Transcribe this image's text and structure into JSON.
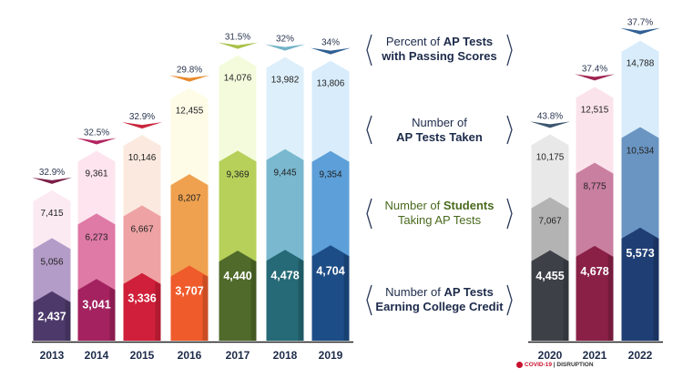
{
  "chart_data": {
    "type": "bar",
    "categories": [
      "2013",
      "2014",
      "2015",
      "2016",
      "2017",
      "2018",
      "2019",
      "2020",
      "2021",
      "2022"
    ],
    "series": [
      {
        "name": "Number of AP Tests Earning College Credit",
        "values": [
          2437,
          3041,
          3336,
          3707,
          4440,
          4478,
          4704,
          4455,
          4678,
          5573
        ]
      },
      {
        "name": "Number of Students Taking AP Tests",
        "values": [
          5056,
          6273,
          6667,
          8207,
          9369,
          9445,
          9354,
          7067,
          8775,
          10534
        ]
      },
      {
        "name": "Number of AP Tests Taken",
        "values": [
          7415,
          9361,
          10146,
          12455,
          14076,
          13982,
          13806,
          10175,
          12515,
          14788
        ]
      },
      {
        "name": "Percent of AP Tests with Passing Scores",
        "values": [
          "32.9%",
          "32.5%",
          "32.9%",
          "29.8%",
          "31.5%",
          "32%",
          "34%",
          "43.8%",
          "37.4%",
          "37.7%"
        ]
      }
    ],
    "value_labels": {
      "credit": [
        "2,437",
        "3,041",
        "3,336",
        "3,707",
        "4,440",
        "4,478",
        "4,704",
        "4,455",
        "4,678",
        "5,573"
      ],
      "students": [
        "5,056",
        "6,273",
        "6,667",
        "8,207",
        "9,369",
        "9,445",
        "9,354",
        "7,067",
        "8,775",
        "10,534"
      ],
      "taken": [
        "7,415",
        "9,361",
        "10,146",
        "12,455",
        "14,076",
        "13,982",
        "13,806",
        "10,175",
        "12,515",
        "14,788"
      ],
      "percent": [
        "32.9%",
        "32.5%",
        "32.9%",
        "29.8%",
        "31.5%",
        "32%",
        "34%",
        "43.8%",
        "37.4%",
        "37.7%"
      ]
    },
    "colors": {
      "dark": [
        "#4d3a6b",
        "#a3225f",
        "#d01f3a",
        "#ef5b2b",
        "#4f6a2a",
        "#256a76",
        "#1d4d86",
        "#3e4048",
        "#8a2046",
        "#1f3e73"
      ],
      "mid": [
        "#b49cc8",
        "#df79a6",
        "#eea2a3",
        "#efa14f",
        "#b6d05a",
        "#79b8cf",
        "#5d9fd8",
        "#b3b3b3",
        "#c97fa0",
        "#6a95c2"
      ],
      "light": [
        "#fbeaf2",
        "#fde4ee",
        "#fbe9df",
        "#fefbe7",
        "#f4fbdd",
        "#ddeffa",
        "#d8ecfb",
        "#e8e8e8",
        "#fbe3ec",
        "#d8ecfb"
      ],
      "arrow": [
        "#7a1e48",
        "#b32560",
        "#c9263c",
        "#e88a2e",
        "#a8c247",
        "#72b3c8",
        "#2f5f94",
        "#3d5670",
        "#9e2452",
        "#2f5f94"
      ]
    },
    "yaxis_max_approx": 15000,
    "grid": false,
    "legend": "center-right"
  },
  "legend": {
    "percent": {
      "line1": "Percent of ",
      "hl1": "AP Tests",
      "line2": "with Passing Scores",
      "color": "#1c2a4a"
    },
    "taken": {
      "line1": "Number of",
      "hl2": "AP Tests Taken",
      "color": "#1c2a4a"
    },
    "students": {
      "line1": "Number of ",
      "hl1": "Students",
      "line2": "Taking AP Tests",
      "color": "#4a6a1e"
    },
    "credit": {
      "line1": "Number of ",
      "hl1": "AP Tests",
      "line2": "Earning College Credit",
      "color": "#1c2a4a"
    }
  },
  "footnote": {
    "brand": "COVID-19",
    "text": "DISRUPTION"
  }
}
